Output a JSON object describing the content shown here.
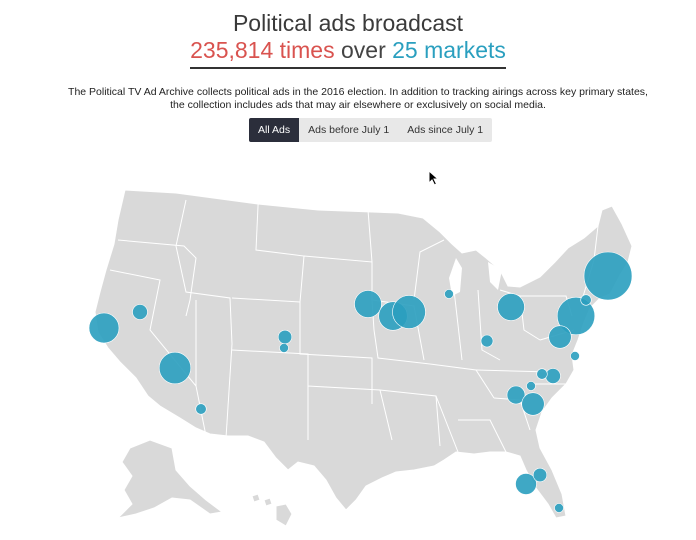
{
  "header": {
    "title": "Political ads broadcast",
    "count": "235,814 times",
    "middle": " over ",
    "markets": "25 markets"
  },
  "description": "The Political TV Ad Archive collects political ads in the 2016 election. In addition to tracking airings across key primary states, the collection includes ads that may air elsewhere or exclusively on social media.",
  "tabs": [
    {
      "label": "All Ads",
      "active": true
    },
    {
      "label": "Ads before July 1",
      "active": false
    },
    {
      "label": "Ads since July 1",
      "active": false
    }
  ],
  "colors": {
    "count": "#d9534f",
    "markets": "#2a9fbf",
    "bubble": "#2a9fbf",
    "land": "#d9d9d9"
  },
  "map": {
    "region": "United States",
    "markets": [
      {
        "region": "San Francisco",
        "relative_size": 1.0
      },
      {
        "region": "Reno",
        "relative_size": 0.5
      },
      {
        "region": "Las Vegas",
        "relative_size": 1.05
      },
      {
        "region": "Tucson",
        "relative_size": 0.35
      },
      {
        "region": "Denver",
        "relative_size": 0.45
      },
      {
        "region": "Colorado Springs",
        "relative_size": 0.3
      },
      {
        "region": "Des Moines",
        "relative_size": 0.9
      },
      {
        "region": "Cedar Rapids",
        "relative_size": 0.95
      },
      {
        "region": "Davenport",
        "relative_size": 1.1
      },
      {
        "region": "Milwaukee",
        "relative_size": 0.3
      },
      {
        "region": "Cleveland",
        "relative_size": 0.9
      },
      {
        "region": "Columbus",
        "relative_size": 0.4
      },
      {
        "region": "Philadelphia",
        "relative_size": 1.25
      },
      {
        "region": "Boston",
        "relative_size": 1.6
      },
      {
        "region": "Manchester",
        "relative_size": 0.35
      },
      {
        "region": "Washington DC",
        "relative_size": 0.75
      },
      {
        "region": "Norfolk",
        "relative_size": 0.3
      },
      {
        "region": "Raleigh",
        "relative_size": 0.5
      },
      {
        "region": "Greenville",
        "relative_size": 0.6
      },
      {
        "region": "Charlotte",
        "relative_size": 0.3
      },
      {
        "region": "Columbia",
        "relative_size": 0.75
      },
      {
        "region": "Charleston",
        "relative_size": 0.35
      },
      {
        "region": "Tampa",
        "relative_size": 0.7
      },
      {
        "region": "Orlando",
        "relative_size": 0.45
      },
      {
        "region": "Miami",
        "relative_size": 0.3
      }
    ]
  }
}
